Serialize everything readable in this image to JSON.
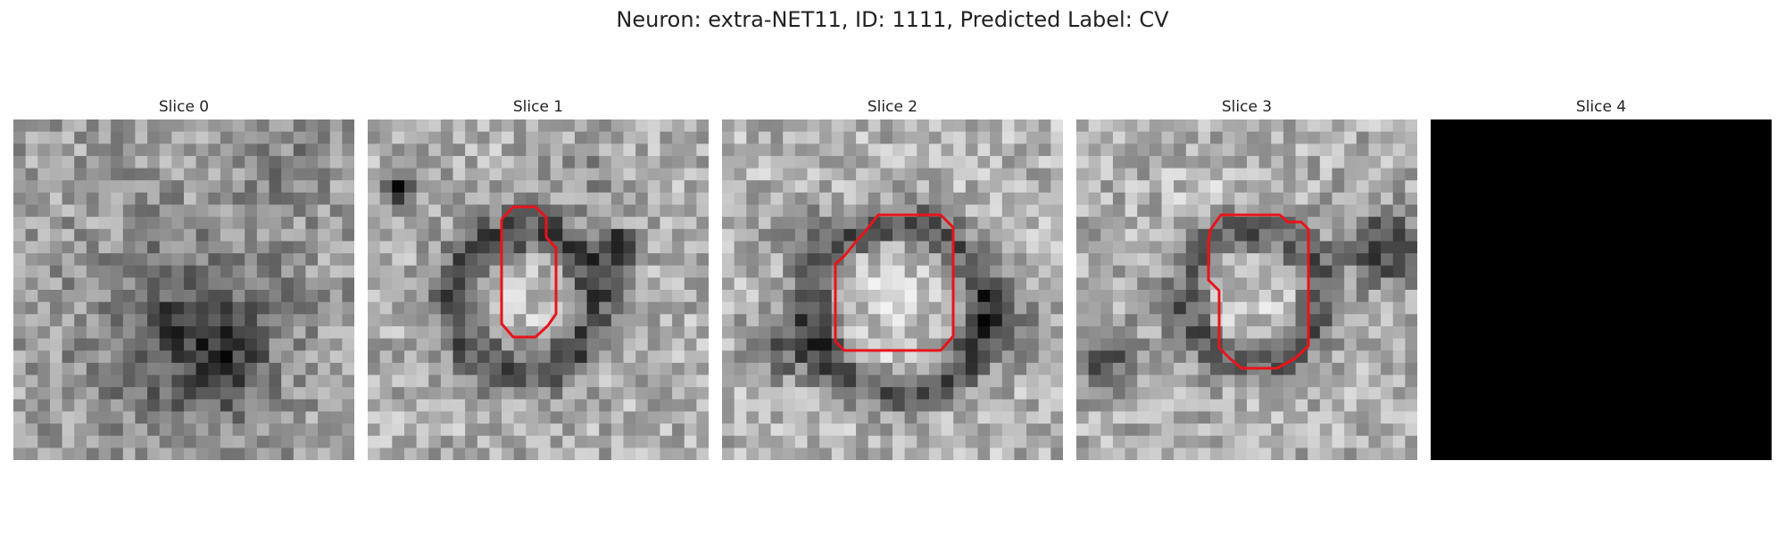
{
  "figure": {
    "title": "Neuron: extra-NET11, ID: 1111, Predicted Label: CV"
  },
  "panels": [
    {
      "title": "Slice 0",
      "has_contour": false,
      "blank": false
    },
    {
      "title": "Slice 1",
      "has_contour": true,
      "blank": false
    },
    {
      "title": "Slice 2",
      "has_contour": true,
      "blank": false
    },
    {
      "title": "Slice 3",
      "has_contour": true,
      "blank": false
    },
    {
      "title": "Slice 4",
      "has_contour": false,
      "blank": true
    }
  ],
  "colors": {
    "contour": "#e8141a",
    "background": "#ffffff",
    "blank_slice": "#000000"
  },
  "image_grid": {
    "pixels_per_side": 28,
    "colormap": "gray"
  }
}
